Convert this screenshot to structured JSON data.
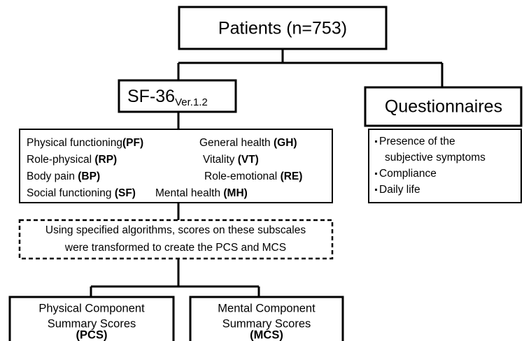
{
  "top": {
    "title": "Patients (n=753)"
  },
  "sf36": {
    "title": "SF-36",
    "subscript": "Ver.1.2"
  },
  "questionnaires": {
    "title": "Questionnaires",
    "items": [
      [
        "Presence of the",
        "subjective symptoms"
      ],
      [
        "Compliance"
      ],
      [
        "Daily life"
      ]
    ]
  },
  "subscales": [
    [
      "Physical functioning",
      "(PF)"
    ],
    [
      "General health ",
      "(GH)"
    ],
    [
      "Role-physical ",
      "(RP)"
    ],
    [
      "Vitality ",
      "(VT)"
    ],
    [
      "Body pain ",
      "(BP)"
    ],
    [
      "Role-emotional ",
      "(RE)"
    ],
    [
      "Social functioning ",
      "(SF)"
    ],
    [
      "Mental health ",
      "(MH)"
    ]
  ],
  "note": [
    "Using specified algorithms, scores on these subscales",
    "were transformed to create the PCS and MCS"
  ],
  "outputs": [
    {
      "lines": [
        "Physical Component",
        "Summary Scores"
      ],
      "abbr": "(PCS)"
    },
    {
      "lines": [
        "Mental Component",
        "Summary Scores"
      ],
      "abbr": "(MCS)"
    }
  ]
}
